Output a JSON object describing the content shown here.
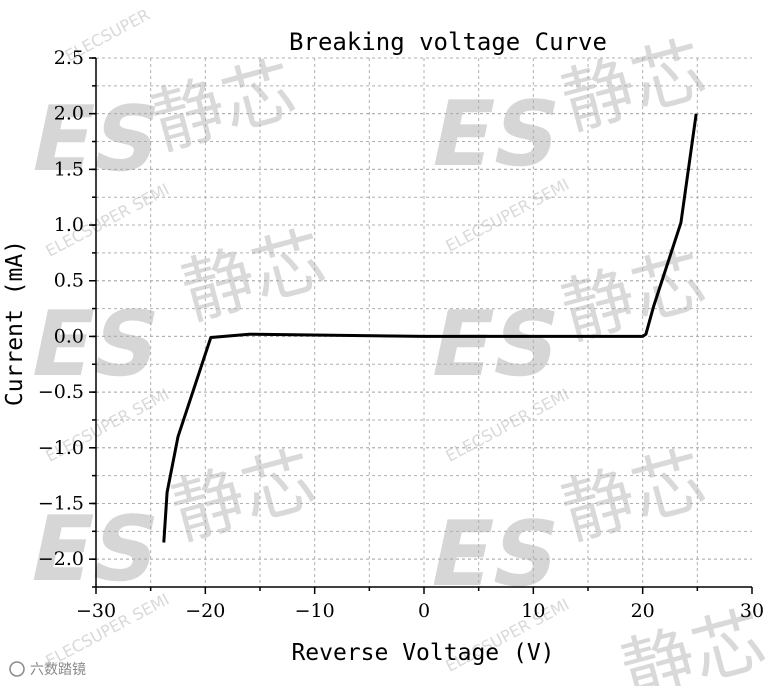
{
  "watermark": {
    "brand": "ELECSUPER SEMI",
    "brand_partial": "ELECSUPER",
    "cjk": "静芯",
    "logo": "ES"
  },
  "footer_mark": "六数踏镜",
  "chart_data": {
    "type": "line",
    "title": "Breaking voltage Curve",
    "xlabel": "Reverse Voltage (V)",
    "ylabel": "Current (mA)",
    "xlim": [
      -30,
      30
    ],
    "ylim": [
      -2.25,
      2.5
    ],
    "xticks": [
      -30,
      -20,
      -10,
      0,
      10,
      20,
      30
    ],
    "yticks": [
      2.5,
      2.0,
      1.5,
      1.0,
      0.5,
      0.0,
      -0.5,
      -1.0,
      -1.5,
      -2.0
    ],
    "xtick_labels": [
      "−30",
      "−20",
      "−10",
      "0",
      "10",
      "20",
      "30"
    ],
    "ytick_labels": [
      "2.5",
      "2.0",
      "1.5",
      "1.0",
      "0.5",
      "0.0",
      "−0.5",
      "−1.0",
      "−1.5",
      "−2.0"
    ],
    "grid": true,
    "series": [
      {
        "x": [
          -23.8,
          -23.5,
          -22.5,
          -19.5,
          -16.0,
          0,
          20.0,
          20.3,
          21.0,
          23.5,
          24.9
        ],
        "y": [
          -1.85,
          -1.4,
          -0.9,
          -0.01,
          0.02,
          0.0,
          0.0,
          0.02,
          0.27,
          1.02,
          2.0
        ]
      }
    ]
  }
}
